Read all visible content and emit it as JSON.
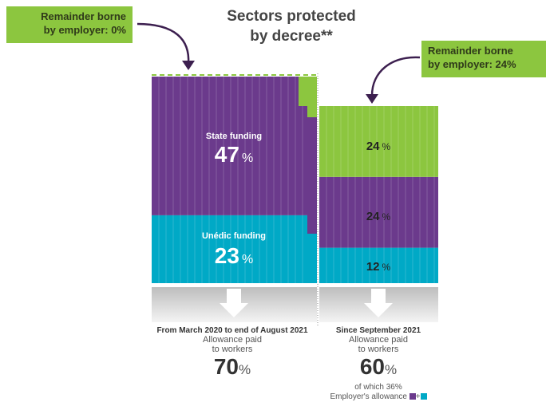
{
  "title_line1": "Sectors protected",
  "title_line2": "by decree**",
  "callout_left_line1": "Remainder borne",
  "callout_left_line2": "by employer: 0%",
  "callout_right_line1": "Remainder borne",
  "callout_right_line2": "by employer: 24%",
  "colors": {
    "purple": "#6b3a8c",
    "cyan": "#00a9c6",
    "green": "#8cc63f",
    "grey": "#d9d9d9"
  },
  "chart_data": {
    "type": "bar",
    "categories": [
      "From March 2020 to end of August 2021",
      "Since September 2021"
    ],
    "series": [
      {
        "name": "Unédic funding",
        "values": [
          23,
          12
        ]
      },
      {
        "name": "State funding",
        "values": [
          47,
          24
        ]
      },
      {
        "name": "Remainder borne by employer",
        "values": [
          0,
          24
        ]
      }
    ],
    "segment_labels": [
      {
        "category": 0,
        "name": "State funding",
        "value": "47",
        "unit": "%"
      },
      {
        "category": 0,
        "name": "Unédic funding",
        "value": "23",
        "unit": "%"
      },
      {
        "category": 1,
        "name": "",
        "value": "24",
        "unit": "%"
      },
      {
        "category": 1,
        "name": "",
        "value": "24",
        "unit": "%"
      },
      {
        "category": 1,
        "name": "",
        "value": "12",
        "unit": "%"
      }
    ]
  },
  "periods": [
    {
      "label": "From March 2020 to end of August 2021",
      "sub1": "Allowance paid",
      "sub2": "to workers",
      "value": "70",
      "unit": "%"
    },
    {
      "label": "Since September 2021",
      "sub1": "Allowance paid",
      "sub2": "to workers",
      "value": "60",
      "unit": "%",
      "note1": "of which 36%",
      "note2": "Employer's allowance",
      "plus": "+"
    }
  ]
}
